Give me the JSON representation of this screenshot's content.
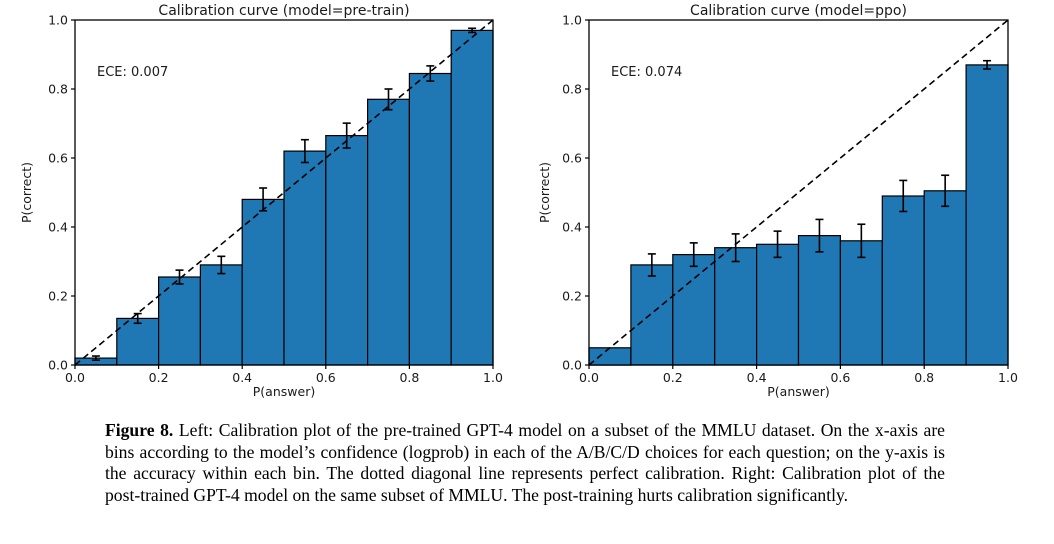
{
  "page": {
    "background_color": "#ffffff"
  },
  "figure_caption": {
    "label": "Figure 8.",
    "text": "Left: Calibration plot of the pre-trained GPT-4 model on a subset of the MMLU dataset. On the x-axis are bins according to the model’s confidence (logprob) in each of the A/B/C/D choices for each question; on the y-axis is the accuracy within each bin. The dotted diagonal line represents perfect calibration. Right: Calibration plot of the post-trained GPT-4 model on the same subset of MMLU. The post-training hurts calibration significantly."
  },
  "chart_data": [
    {
      "id": "pretrain",
      "type": "bar",
      "title": "Calibration curve (model=pre-train)",
      "annotation": "ECE: 0.007",
      "xlabel": "P(answer)",
      "ylabel": "P(correct)",
      "xlim": [
        0.0,
        1.0
      ],
      "ylim": [
        0.0,
        1.0
      ],
      "xticks": [
        "0.0",
        "0.2",
        "0.4",
        "0.6",
        "0.8",
        "1.0"
      ],
      "yticks": [
        "0.0",
        "0.2",
        "0.4",
        "0.6",
        "0.8",
        "1.0"
      ],
      "bin_edges": [
        0.0,
        0.1,
        0.2,
        0.3,
        0.4,
        0.5,
        0.6,
        0.7,
        0.8,
        0.9,
        1.0
      ],
      "values": [
        0.02,
        0.135,
        0.255,
        0.29,
        0.48,
        0.62,
        0.665,
        0.77,
        0.845,
        0.97
      ],
      "errors": [
        0.006,
        0.014,
        0.02,
        0.025,
        0.033,
        0.033,
        0.036,
        0.03,
        0.022,
        0.006
      ],
      "diagonal_line": "y=x dashed, perfect calibration",
      "grid": false,
      "bar_color": "#1f77b4",
      "bar_edge_color": "#000000",
      "error_color": "#000000"
    },
    {
      "id": "ppo",
      "type": "bar",
      "title": "Calibration curve (model=ppo)",
      "annotation": "ECE: 0.074",
      "xlabel": "P(answer)",
      "ylabel": "P(correct)",
      "xlim": [
        0.0,
        1.0
      ],
      "ylim": [
        0.0,
        1.0
      ],
      "xticks": [
        "0.0",
        "0.2",
        "0.4",
        "0.6",
        "0.8",
        "1.0"
      ],
      "yticks": [
        "0.0",
        "0.2",
        "0.4",
        "0.6",
        "0.8",
        "1.0"
      ],
      "bin_edges": [
        0.0,
        0.1,
        0.2,
        0.3,
        0.4,
        0.5,
        0.6,
        0.7,
        0.8,
        0.9,
        1.0
      ],
      "values": [
        0.05,
        0.29,
        0.32,
        0.34,
        0.35,
        0.375,
        0.36,
        0.49,
        0.505,
        0.87
      ],
      "errors": [
        0,
        0.032,
        0.034,
        0.04,
        0.038,
        0.047,
        0.048,
        0.045,
        0.045,
        0.012
      ],
      "diagonal_line": "y=x dashed, perfect calibration",
      "grid": false,
      "bar_color": "#1f77b4",
      "bar_edge_color": "#000000",
      "error_color": "#000000"
    }
  ]
}
